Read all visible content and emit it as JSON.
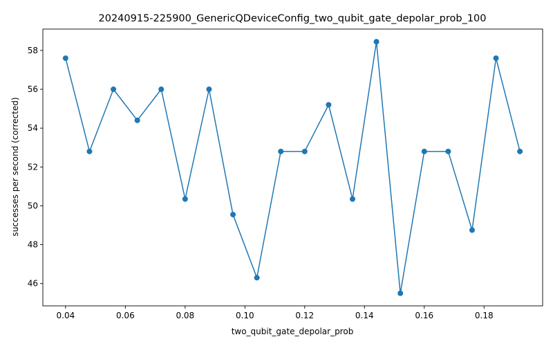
{
  "chart_data": {
    "type": "line",
    "title": "20240915-225900_GenericQDeviceConfig_two_qubit_gate_depolar_prob_100",
    "xlabel": "two_qubit_gate_depolar_prob",
    "ylabel": "successes per second (corrected)",
    "xlim": [
      0.0324,
      0.1996
    ],
    "ylim": [
      44.85,
      59.1
    ],
    "xticks": [
      0.04,
      0.06,
      0.08,
      0.1,
      0.12,
      0.14,
      0.16,
      0.18
    ],
    "xtick_labels": [
      "0.04",
      "0.06",
      "0.08",
      "0.10",
      "0.12",
      "0.14",
      "0.16",
      "0.18"
    ],
    "yticks": [
      46,
      48,
      50,
      52,
      54,
      56,
      58
    ],
    "ytick_labels": [
      "46",
      "48",
      "50",
      "52",
      "54",
      "56",
      "58"
    ],
    "grid": false,
    "legend": "none",
    "series": [
      {
        "color": "#1f77b4",
        "marker": "circle",
        "x": [
          0.04,
          0.048,
          0.056,
          0.064,
          0.072,
          0.08,
          0.088,
          0.096,
          0.104,
          0.112,
          0.12,
          0.128,
          0.136,
          0.144,
          0.152,
          0.16,
          0.168,
          0.176,
          0.184,
          0.192
        ],
        "y": [
          57.6,
          52.8,
          56.0,
          54.4,
          56.0,
          50.35,
          56.0,
          49.55,
          46.3,
          52.8,
          52.8,
          55.2,
          50.35,
          58.45,
          45.5,
          52.8,
          52.8,
          48.75,
          57.6,
          52.8
        ]
      }
    ]
  }
}
